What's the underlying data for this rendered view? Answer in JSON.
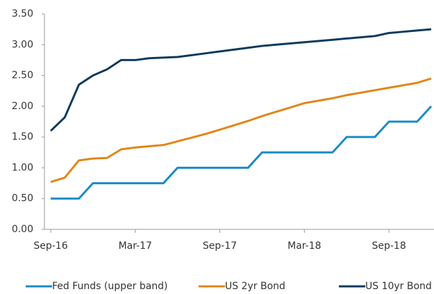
{
  "chart_data": {
    "type": "line",
    "categories": [
      "Sep-16",
      null,
      null,
      null,
      null,
      null,
      "Mar-17",
      null,
      null,
      null,
      null,
      null,
      "Sep-17",
      null,
      null,
      null,
      null,
      null,
      "Mar-18",
      null,
      null,
      null,
      null,
      null,
      "Sep-18",
      null,
      null,
      null
    ],
    "series": [
      {
        "name": "Fed Funds (upper band)",
        "color": "#1b8bc7",
        "values": [
          0.5,
          0.5,
          0.5,
          0.75,
          0.75,
          0.75,
          0.75,
          0.75,
          0.75,
          1,
          1,
          1,
          1,
          1,
          1,
          1.25,
          1.25,
          1.25,
          1.25,
          1.25,
          1.25,
          1.5,
          1.5,
          1.5,
          1.75,
          1.75,
          1.75,
          2.0
        ]
      },
      {
        "name": "US 2yr Bond",
        "color": "#e0861a",
        "values": [
          0.77,
          0.84,
          1.12,
          1.15,
          1.16,
          1.3,
          1.33,
          1.35,
          1.37,
          1.43,
          1.49,
          1.55,
          1.62,
          1.69,
          1.76,
          1.84,
          1.91,
          1.98,
          2.05,
          2.09,
          2.13,
          2.18,
          2.22,
          2.26,
          2.3,
          2.34,
          2.38,
          2.45
        ]
      },
      {
        "name": "US 10yr Bond",
        "color": "#0f3a5d",
        "values": [
          1.6,
          1.82,
          2.35,
          2.5,
          2.6,
          2.75,
          2.75,
          2.78,
          2.79,
          2.8,
          2.83,
          2.86,
          2.89,
          2.92,
          2.95,
          2.98,
          3.0,
          3.02,
          3.04,
          3.06,
          3.08,
          3.1,
          3.12,
          3.14,
          3.19,
          3.21,
          3.23,
          3.25
        ]
      }
    ],
    "ylim": [
      0,
      3.5
    ],
    "yticks": [
      {
        "value": 0,
        "label": "0.00"
      },
      {
        "value": 0.5,
        "label": "0.50"
      },
      {
        "value": 1,
        "label": "1.00"
      },
      {
        "value": 1.5,
        "label": "1.50"
      },
      {
        "value": 2,
        "label": "2.00"
      },
      {
        "value": 2.5,
        "label": "2.50"
      },
      {
        "value": 3,
        "label": "3.00"
      },
      {
        "value": 3.5,
        "label": "3.50"
      }
    ],
    "legend": "bottom"
  }
}
